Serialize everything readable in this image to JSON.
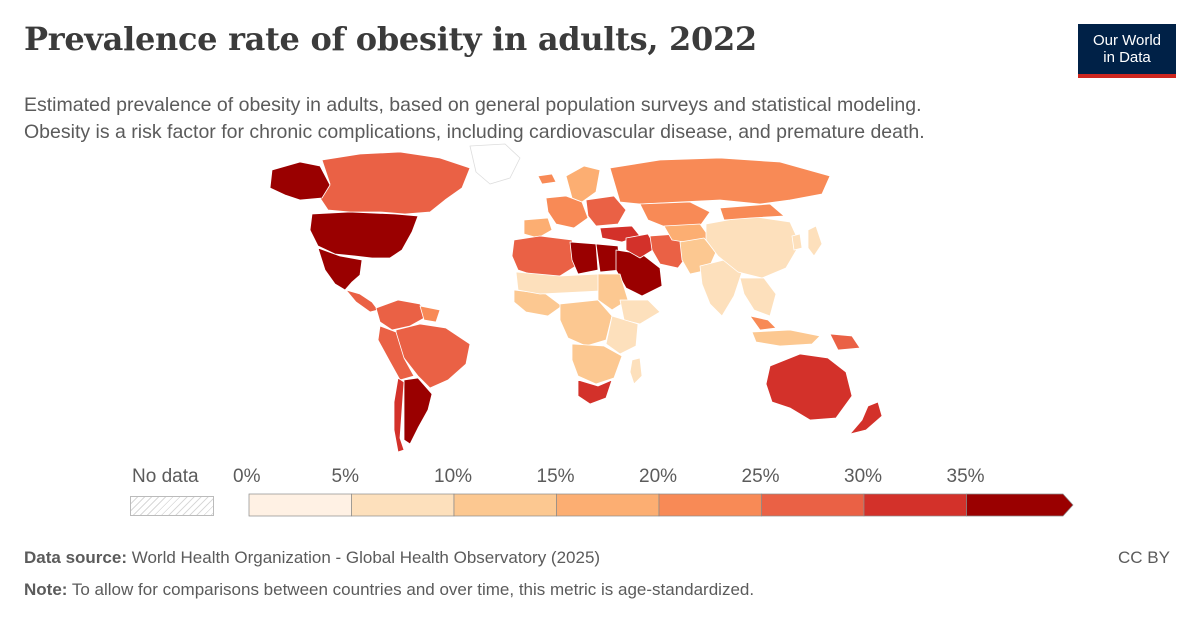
{
  "header": {
    "title": "Prevalence rate of obesity in adults, 2022",
    "subtitle_line1": "Estimated prevalence of obesity in adults, based on general population surveys and statistical modeling.",
    "subtitle_line2": "Obesity is a risk factor for chronic complications, including cardiovascular disease, and premature death."
  },
  "logo": {
    "line1": "Our World",
    "line2": "in Data"
  },
  "legend": {
    "no_data_label": "No data",
    "ticks": [
      "0%",
      "5%",
      "10%",
      "15%",
      "20%",
      "25%",
      "30%",
      "35%"
    ],
    "bins": [
      {
        "from": 0,
        "to": 5,
        "color": "#fff1e4"
      },
      {
        "from": 5,
        "to": 10,
        "color": "#fde0bc"
      },
      {
        "from": 10,
        "to": 15,
        "color": "#fcc891"
      },
      {
        "from": 15,
        "to": 20,
        "color": "#fcae72"
      },
      {
        "from": 20,
        "to": 25,
        "color": "#f88a56"
      },
      {
        "from": 25,
        "to": 30,
        "color": "#ea6145"
      },
      {
        "from": 30,
        "to": 35,
        "color": "#d3312a"
      },
      {
        "from": 35,
        "to": null,
        "color": "#9a0000"
      }
    ],
    "unit": "%"
  },
  "map_data": {
    "type": "choropleth",
    "metric": "Prevalence rate of obesity in adults",
    "year": 2022,
    "regions": [
      {
        "name": "United States",
        "bin": 7
      },
      {
        "name": "Canada",
        "bin": 5
      },
      {
        "name": "Alaska",
        "bin": 7
      },
      {
        "name": "Greenland",
        "bin": null
      },
      {
        "name": "Mexico",
        "bin": 7
      },
      {
        "name": "Central America",
        "bin": 5
      },
      {
        "name": "Venezuela / Colombia",
        "bin": 5
      },
      {
        "name": "Brazil",
        "bin": 5
      },
      {
        "name": "Peru / Bolivia",
        "bin": 5
      },
      {
        "name": "Argentina",
        "bin": 7
      },
      {
        "name": "Chile",
        "bin": 6
      },
      {
        "name": "Guianas",
        "bin": 4
      },
      {
        "name": "Iceland",
        "bin": 4
      },
      {
        "name": "Western Europe",
        "bin": 4
      },
      {
        "name": "Iberia",
        "bin": 3
      },
      {
        "name": "Eastern Europe",
        "bin": 5
      },
      {
        "name": "Scandinavia",
        "bin": 3
      },
      {
        "name": "Russia",
        "bin": 4
      },
      {
        "name": "Kazakhstan",
        "bin": 4
      },
      {
        "name": "Turkey",
        "bin": 6
      },
      {
        "name": "North Africa (Morocco/Algeria)",
        "bin": 5
      },
      {
        "name": "Libya",
        "bin": 7
      },
      {
        "name": "Egypt",
        "bin": 7
      },
      {
        "name": "Saudi Arabia",
        "bin": 7
      },
      {
        "name": "Iraq / Syria",
        "bin": 6
      },
      {
        "name": "Iran",
        "bin": 5
      },
      {
        "name": "Central Asia",
        "bin": 3
      },
      {
        "name": "Afghanistan / Pakistan",
        "bin": 2
      },
      {
        "name": "India",
        "bin": 1
      },
      {
        "name": "China",
        "bin": 1
      },
      {
        "name": "Mongolia",
        "bin": 4
      },
      {
        "name": "Japan",
        "bin": 1
      },
      {
        "name": "Korea",
        "bin": 1
      },
      {
        "name": "Southeast Asia",
        "bin": 1
      },
      {
        "name": "Malaysia",
        "bin": 4
      },
      {
        "name": "Indonesia",
        "bin": 2
      },
      {
        "name": "Papua New Guinea",
        "bin": 5
      },
      {
        "name": "West Africa",
        "bin": 2
      },
      {
        "name": "Sahel",
        "bin": 1
      },
      {
        "name": "Sudan",
        "bin": 2
      },
      {
        "name": "Ethiopia / Horn",
        "bin": 1
      },
      {
        "name": "Central Africa",
        "bin": 2
      },
      {
        "name": "East Africa",
        "bin": 1
      },
      {
        "name": "Southern Africa",
        "bin": 2
      },
      {
        "name": "South Africa",
        "bin": 6
      },
      {
        "name": "Madagascar",
        "bin": 1
      },
      {
        "name": "Australia",
        "bin": 6
      },
      {
        "name": "New Zealand",
        "bin": 6
      }
    ]
  },
  "footer": {
    "source_label": "Data source:",
    "source_text": "World Health Organization - Global Health Observatory (2025)",
    "note_label": "Note:",
    "note_text": "To allow for comparisons between countries and over time, this metric is age-standardized.",
    "license": "CC BY"
  }
}
